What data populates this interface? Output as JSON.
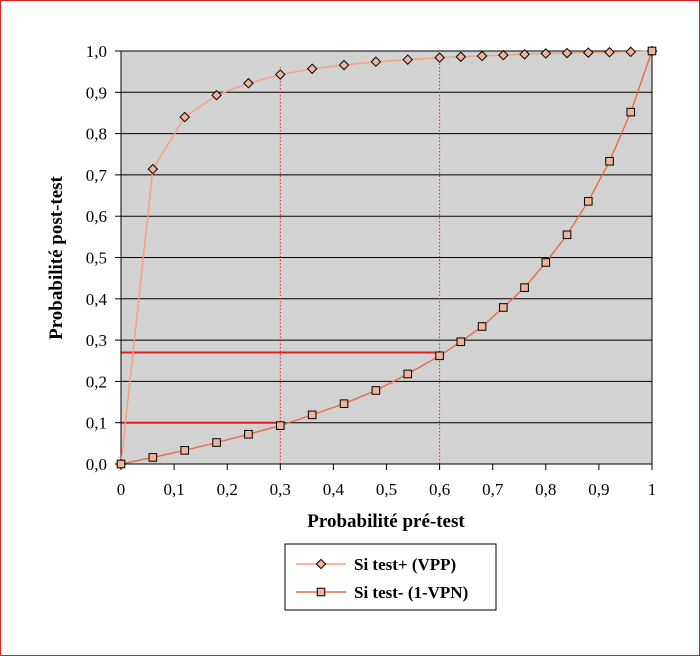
{
  "chart_data": {
    "type": "line",
    "xlabel": "Probabilité pré-test",
    "ylabel": "Probabilité post-test",
    "xlim": [
      0,
      1
    ],
    "ylim": [
      0,
      1
    ],
    "grid": "horizontal",
    "legend_position": "bottom",
    "x_ticks": [
      "0",
      "0,1",
      "0,2",
      "0,3",
      "0,4",
      "0,5",
      "0,6",
      "0,7",
      "0,8",
      "0,9",
      "1"
    ],
    "x_ticks_highlighted": [
      "0,3",
      "0,6"
    ],
    "y_ticks": [
      "0,0",
      "0,1",
      "0,2",
      "0,3",
      "0,4",
      "0,5",
      "0,6",
      "0,7",
      "0,8",
      "0,9",
      "1,0"
    ],
    "x": [
      0,
      0.06,
      0.12,
      0.18,
      0.24,
      0.3,
      0.36,
      0.42,
      0.48,
      0.54,
      0.6,
      0.64,
      0.68,
      0.72,
      0.76,
      0.8,
      0.84,
      0.88,
      0.92,
      0.96,
      1.0
    ],
    "series": [
      {
        "name": "Si test+ (VPP)",
        "marker": "diamond",
        "color": "#f5a080",
        "values": [
          0,
          0.714,
          0.84,
          0.893,
          0.922,
          0.943,
          0.957,
          0.966,
          0.974,
          0.979,
          0.984,
          0.986,
          0.988,
          0.99,
          0.992,
          0.994,
          0.995,
          0.996,
          0.997,
          0.998,
          1.0
        ]
      },
      {
        "name": "Si test- (1-VPN)",
        "marker": "square",
        "color": "#e86a4a",
        "values": [
          0,
          0.016,
          0.033,
          0.052,
          0.072,
          0.093,
          0.119,
          0.146,
          0.178,
          0.218,
          0.262,
          0.296,
          0.333,
          0.379,
          0.427,
          0.488,
          0.555,
          0.636,
          0.733,
          0.852,
          1.0
        ]
      }
    ],
    "reference_lines": [
      {
        "type": "vertical",
        "x": 0.3,
        "y_to": 0.965,
        "style": "dotted"
      },
      {
        "type": "vertical",
        "x": 0.6,
        "y_to": 0.98,
        "style": "dotted"
      },
      {
        "type": "horizontal",
        "y": 0.27,
        "x_to": 0.6,
        "style": "solid"
      },
      {
        "type": "horizontal",
        "y": 0.1,
        "x_to": 0.3,
        "style": "solid"
      }
    ]
  },
  "colors": {
    "plot_background": "#d2d2d2",
    "frame_border": "#e02020",
    "reference_line": "#e02020",
    "highlight_tick": "#e02020",
    "marker_fill": "#f0b49a"
  }
}
